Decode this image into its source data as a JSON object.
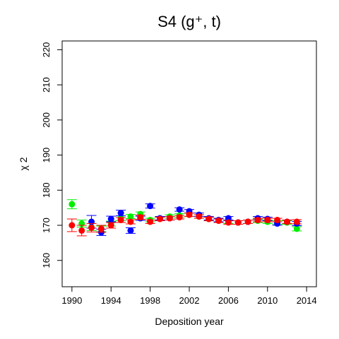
{
  "chart_data": {
    "type": "scatter",
    "title": "S4  (g⁺, t)",
    "xlabel": "Deposition year",
    "ylabel": "χ 2",
    "xlim": [
      1989,
      2015
    ],
    "ylim": [
      152.5,
      222.5
    ],
    "xticks": [
      1990,
      1994,
      1998,
      2002,
      2006,
      2010,
      2014
    ],
    "yticks": [
      160,
      170,
      180,
      190,
      200,
      210,
      220
    ],
    "grid": false,
    "legend": "none",
    "series": [
      {
        "color": "#00ee00",
        "points": [
          {
            "x": 1990,
            "y": 176.0,
            "err": 1.3
          },
          {
            "x": 1991,
            "y": 170.5,
            "err": 1.0
          },
          {
            "x": 1992,
            "y": 169.5,
            "err": 1.0
          },
          {
            "x": 1993,
            "y": 169.0,
            "err": 0.8
          },
          {
            "x": 1994,
            "y": 170.5,
            "err": 0.7
          },
          {
            "x": 1995,
            "y": 172.0,
            "err": 0.7
          },
          {
            "x": 1996,
            "y": 172.5,
            "err": 0.6
          },
          {
            "x": 1997,
            "y": 173.2,
            "err": 0.6
          },
          {
            "x": 1998,
            "y": 171.5,
            "err": 0.5
          },
          {
            "x": 1999,
            "y": 172.0,
            "err": 0.5
          },
          {
            "x": 2000,
            "y": 172.5,
            "err": 0.5
          },
          {
            "x": 2001,
            "y": 172.8,
            "err": 0.5
          },
          {
            "x": 2002,
            "y": 173.0,
            "err": 0.5
          },
          {
            "x": 2003,
            "y": 172.5,
            "err": 0.5
          },
          {
            "x": 2004,
            "y": 171.8,
            "err": 0.5
          },
          {
            "x": 2005,
            "y": 171.3,
            "err": 0.5
          },
          {
            "x": 2006,
            "y": 171.0,
            "err": 0.5
          },
          {
            "x": 2007,
            "y": 170.8,
            "err": 0.5
          },
          {
            "x": 2008,
            "y": 171.0,
            "err": 0.5
          },
          {
            "x": 2009,
            "y": 171.3,
            "err": 0.5
          },
          {
            "x": 2010,
            "y": 171.0,
            "err": 0.5
          },
          {
            "x": 2011,
            "y": 170.8,
            "err": 0.5
          },
          {
            "x": 2012,
            "y": 170.8,
            "err": 0.5
          },
          {
            "x": 2013,
            "y": 169.0,
            "err": 0.6
          }
        ]
      },
      {
        "color": "#0000ff",
        "points": [
          {
            "x": 1992,
            "y": 171.0,
            "err": 1.8
          },
          {
            "x": 1993,
            "y": 168.0,
            "err": 0.9
          },
          {
            "x": 1994,
            "y": 171.8,
            "err": 0.8
          },
          {
            "x": 1995,
            "y": 173.5,
            "err": 0.8
          },
          {
            "x": 1996,
            "y": 168.5,
            "err": 0.8
          },
          {
            "x": 1997,
            "y": 172.0,
            "err": 0.6
          },
          {
            "x": 1998,
            "y": 175.5,
            "err": 0.6
          },
          {
            "x": 1999,
            "y": 172.0,
            "err": 0.5
          },
          {
            "x": 2000,
            "y": 172.0,
            "err": 0.5
          },
          {
            "x": 2001,
            "y": 174.5,
            "err": 0.5
          },
          {
            "x": 2002,
            "y": 174.0,
            "err": 0.5
          },
          {
            "x": 2003,
            "y": 173.0,
            "err": 0.5
          },
          {
            "x": 2004,
            "y": 172.0,
            "err": 0.5
          },
          {
            "x": 2005,
            "y": 171.5,
            "err": 0.5
          },
          {
            "x": 2006,
            "y": 172.0,
            "err": 0.5
          },
          {
            "x": 2007,
            "y": 170.8,
            "err": 0.5
          },
          {
            "x": 2008,
            "y": 171.0,
            "err": 0.5
          },
          {
            "x": 2009,
            "y": 172.0,
            "err": 0.5
          },
          {
            "x": 2010,
            "y": 171.8,
            "err": 0.5
          },
          {
            "x": 2011,
            "y": 170.5,
            "err": 0.5
          },
          {
            "x": 2012,
            "y": 171.0,
            "err": 0.5
          },
          {
            "x": 2013,
            "y": 170.5,
            "err": 0.6
          }
        ]
      },
      {
        "color": "#ff0000",
        "points": [
          {
            "x": 1990,
            "y": 170.0,
            "err": 1.8
          },
          {
            "x": 1991,
            "y": 168.5,
            "err": 1.5
          },
          {
            "x": 1992,
            "y": 169.3,
            "err": 1.2
          },
          {
            "x": 1993,
            "y": 169.0,
            "err": 1.0
          },
          {
            "x": 1994,
            "y": 170.0,
            "err": 0.8
          },
          {
            "x": 1995,
            "y": 171.5,
            "err": 0.7
          },
          {
            "x": 1996,
            "y": 171.0,
            "err": 0.6
          },
          {
            "x": 1997,
            "y": 172.3,
            "err": 0.6
          },
          {
            "x": 1998,
            "y": 171.0,
            "err": 0.5
          },
          {
            "x": 1999,
            "y": 171.8,
            "err": 0.5
          },
          {
            "x": 2000,
            "y": 172.0,
            "err": 0.5
          },
          {
            "x": 2001,
            "y": 172.3,
            "err": 0.5
          },
          {
            "x": 2002,
            "y": 173.0,
            "err": 0.5
          },
          {
            "x": 2003,
            "y": 172.5,
            "err": 0.5
          },
          {
            "x": 2004,
            "y": 171.8,
            "err": 0.5
          },
          {
            "x": 2005,
            "y": 171.3,
            "err": 0.5
          },
          {
            "x": 2006,
            "y": 170.8,
            "err": 0.5
          },
          {
            "x": 2007,
            "y": 170.8,
            "err": 0.5
          },
          {
            "x": 2008,
            "y": 171.0,
            "err": 0.5
          },
          {
            "x": 2009,
            "y": 171.5,
            "err": 0.5
          },
          {
            "x": 2010,
            "y": 171.5,
            "err": 0.5
          },
          {
            "x": 2011,
            "y": 171.5,
            "err": 0.5
          },
          {
            "x": 2012,
            "y": 171.0,
            "err": 0.5
          },
          {
            "x": 2013,
            "y": 171.0,
            "err": 0.6
          }
        ]
      }
    ]
  }
}
